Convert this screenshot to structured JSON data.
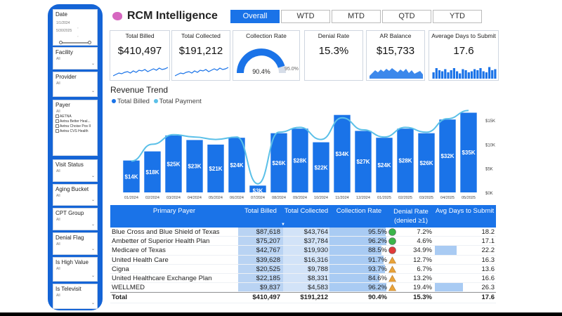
{
  "filters": {
    "date": {
      "title": "Date",
      "start": "1/1/2024",
      "end": "5/30/2025"
    },
    "cards": [
      {
        "title": "Facility",
        "value": "All"
      },
      {
        "title": "Provider",
        "value": "All"
      },
      {
        "title": "Payer",
        "value": "All",
        "items": [
          "AETNA",
          "Aetna Better Heal...",
          "Aetna Choise Pos II",
          "Aetna CVS Health"
        ]
      },
      {
        "title": "Visit Status",
        "value": "All"
      },
      {
        "title": "Aging Bucket",
        "value": "All"
      },
      {
        "title": "CPT Group",
        "value": "All"
      },
      {
        "title": "Denial Flag",
        "value": "All"
      },
      {
        "title": "Is High Value",
        "value": "All"
      },
      {
        "title": "Is Televisit",
        "value": "All"
      }
    ]
  },
  "header": {
    "title": "RCM Intelligence",
    "tabs": [
      "Overall",
      "WTD",
      "MTD",
      "QTD",
      "YTD"
    ],
    "active_tab": "Overall"
  },
  "kpis": [
    {
      "title": "Total Billed",
      "value": "$410,497"
    },
    {
      "title": "Total Collected",
      "value": "$191,212"
    },
    {
      "title": "Collection Rate",
      "value": "90.4%",
      "target": "95.0%",
      "fraction": 0.904
    },
    {
      "title": "Denial Rate",
      "value": "15.3%"
    },
    {
      "title": "AR Balance",
      "value": "$15,733"
    },
    {
      "title": "Average Days to Submit",
      "value": "17.6"
    }
  ],
  "chart_data": {
    "type": "bar",
    "title": "Revenue Trend",
    "legend": [
      "Total Billed",
      "Total Payment"
    ],
    "categories": [
      "01/2024",
      "02/2024",
      "03/2024",
      "04/2024",
      "05/2024",
      "06/2024",
      "07/2024",
      "08/2024",
      "09/2024",
      "10/2024",
      "11/2024",
      "12/2024",
      "01/2025",
      "02/2025",
      "03/2025",
      "04/2025",
      "05/2025"
    ],
    "series": [
      {
        "name": "Total Billed",
        "values": [
          14,
          18,
          25,
          23,
          21,
          24,
          3,
          26,
          28,
          22,
          34,
          27,
          24,
          28,
          26,
          32,
          35
        ],
        "labels": [
          "$14K",
          "$18K",
          "$25K",
          "$23K",
          "$21K",
          "$24K",
          "$3K",
          "$26K",
          "$28K",
          "$22K",
          "$34K",
          "$27K",
          "$24K",
          "$28K",
          "$26K",
          "$32K",
          "$35K"
        ]
      },
      {
        "name": "Total Payment",
        "values": [
          6.5,
          10,
          12,
          11.5,
          11,
          11.5,
          1.8,
          12.5,
          13.5,
          11,
          15.5,
          13,
          11.5,
          13.5,
          12.5,
          15.3,
          17
        ]
      }
    ],
    "ylim": [
      0,
      37
    ],
    "right_axis": {
      "ticks": [
        "$15K",
        "$10K",
        "$5K",
        "$0K"
      ],
      "values": [
        15,
        10,
        5,
        0
      ],
      "ylim": [
        0,
        17.5
      ]
    }
  },
  "table": {
    "columns": [
      "Primary Payer",
      "Total Billed",
      "Total Collected",
      "Collection Rate",
      "Denial Rate (denied ≥1)",
      "Avg Days to Submit"
    ],
    "rows": [
      {
        "payer": "Blue Cross and Blue Shield of Texas",
        "billed": "$87,618",
        "collected": "$43,764",
        "rate": "95.5%",
        "status": "green",
        "denial": "7.2%",
        "days": "18.2",
        "rate_frac": 0.955,
        "days_frac": 0.0
      },
      {
        "payer": "Ambetter of Superior Health Plan",
        "billed": "$75,207",
        "collected": "$37,784",
        "rate": "96.2%",
        "status": "green",
        "denial": "4.6%",
        "days": "17.1",
        "rate_frac": 0.962,
        "days_frac": 0.0
      },
      {
        "payer": "Medicare of Texas",
        "billed": "$42,767",
        "collected": "$19,930",
        "rate": "88.5%",
        "status": "red",
        "denial": "34.9%",
        "days": "22.2",
        "rate_frac": 0.885,
        "days_frac": 0.35
      },
      {
        "payer": "United Health Care",
        "billed": "$39,628",
        "collected": "$16,316",
        "rate": "91.7%",
        "status": "amber",
        "denial": "12.7%",
        "days": "16.3",
        "rate_frac": 0.917,
        "days_frac": 0.0
      },
      {
        "payer": "Cigna",
        "billed": "$20,525",
        "collected": "$9,788",
        "rate": "93.7%",
        "status": "amber",
        "denial": "6.7%",
        "days": "13.6",
        "rate_frac": 0.937,
        "days_frac": 0.0
      },
      {
        "payer": "United Healthcare Exchange Plan",
        "billed": "$22,185",
        "collected": "$8,331",
        "rate": "84.6%",
        "status": "amber",
        "denial": "13.2%",
        "days": "16.6",
        "rate_frac": 0.846,
        "days_frac": 0.0
      },
      {
        "payer": "WELLMED",
        "billed": "$9,837",
        "collected": "$4,583",
        "rate": "96.2%",
        "status": "amber",
        "denial": "19.4%",
        "days": "26.3",
        "rate_frac": 0.962,
        "days_frac": 0.45
      }
    ],
    "total": {
      "label": "Total",
      "billed": "$410,497",
      "collected": "$191,212",
      "rate": "90.4%",
      "denial": "15.3%",
      "days": "17.6"
    }
  },
  "colors": {
    "accent": "#1a73e8",
    "line": "#5bc0e8",
    "pane": "#1464d6",
    "green": "#3bb54a",
    "red": "#e03a3a",
    "amber": "#e8a33a"
  }
}
